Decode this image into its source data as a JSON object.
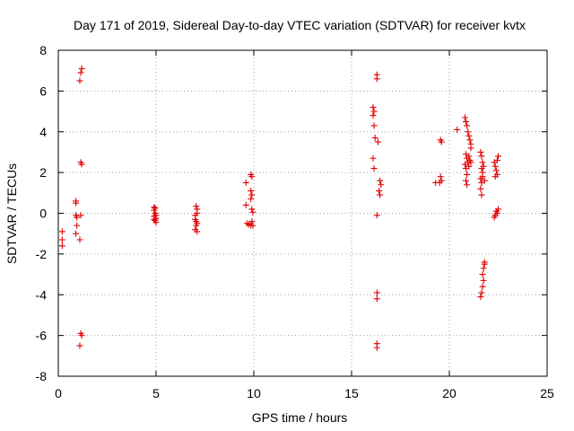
{
  "chart_data": {
    "type": "scatter",
    "title": "Day 171 of 2019, Sidereal Day-to-day VTEC variation (SDTVAR) for receiver kvtx",
    "xlabel": "GPS time / hours",
    "ylabel": "SDTVAR / TECUs",
    "xlim": [
      0,
      25
    ],
    "ylim": [
      -8,
      8
    ],
    "xticks": [
      "0",
      "5",
      "10",
      "15",
      "20",
      "25"
    ],
    "yticks": [
      "-8",
      "-6",
      "-4",
      "-2",
      "0",
      "2",
      "4",
      "6",
      "8"
    ],
    "grid": true,
    "marker": "plus",
    "color": "#e00000",
    "series": [
      {
        "name": "SDTVAR",
        "points": [
          [
            0.2,
            -0.9
          ],
          [
            0.2,
            -1.3
          ],
          [
            0.2,
            -1.6
          ],
          [
            0.9,
            0.6
          ],
          [
            0.9,
            0.5
          ],
          [
            0.9,
            -0.1
          ],
          [
            0.95,
            -0.2
          ],
          [
            0.95,
            -0.6
          ],
          [
            0.9,
            -1.0
          ],
          [
            1.1,
            -1.3
          ],
          [
            1.15,
            -0.1
          ],
          [
            1.2,
            7.1
          ],
          [
            1.15,
            6.9
          ],
          [
            1.1,
            6.5
          ],
          [
            1.15,
            2.5
          ],
          [
            1.2,
            2.4
          ],
          [
            1.15,
            -5.9
          ],
          [
            1.2,
            -6.0
          ],
          [
            1.1,
            -6.5
          ],
          [
            4.9,
            0.3
          ],
          [
            4.95,
            0.25
          ],
          [
            4.9,
            0.15
          ],
          [
            4.95,
            0.0
          ],
          [
            4.9,
            -0.15
          ],
          [
            5.0,
            -0.25
          ],
          [
            4.95,
            -0.35
          ],
          [
            5.0,
            -0.45
          ],
          [
            4.9,
            -0.3
          ],
          [
            5.0,
            -0.1
          ],
          [
            7.05,
            0.35
          ],
          [
            7.1,
            0.2
          ],
          [
            7.0,
            -0.3
          ],
          [
            7.05,
            -0.4
          ],
          [
            7.1,
            -0.5
          ],
          [
            7.05,
            -0.6
          ],
          [
            7.0,
            -0.8
          ],
          [
            7.1,
            -0.9
          ],
          [
            7.0,
            -0.1
          ],
          [
            7.1,
            0.0
          ],
          [
            9.6,
            1.5
          ],
          [
            9.6,
            0.4
          ],
          [
            9.65,
            -0.5
          ],
          [
            9.75,
            -0.55
          ],
          [
            9.85,
            -0.6
          ],
          [
            9.95,
            -0.6
          ],
          [
            9.85,
            1.9
          ],
          [
            9.9,
            1.8
          ],
          [
            9.85,
            1.1
          ],
          [
            9.9,
            0.9
          ],
          [
            9.85,
            0.7
          ],
          [
            9.9,
            0.2
          ],
          [
            9.95,
            0.05
          ],
          [
            9.9,
            -0.4
          ],
          [
            16.1,
            5.2
          ],
          [
            16.15,
            5.0
          ],
          [
            16.1,
            4.8
          ],
          [
            16.15,
            4.3
          ],
          [
            16.2,
            3.7
          ],
          [
            16.1,
            2.7
          ],
          [
            16.15,
            2.2
          ],
          [
            16.3,
            6.8
          ],
          [
            16.3,
            6.6
          ],
          [
            16.35,
            3.5
          ],
          [
            16.3,
            -0.1
          ],
          [
            16.3,
            -3.9
          ],
          [
            16.3,
            -4.2
          ],
          [
            16.3,
            -6.4
          ],
          [
            16.3,
            -6.6
          ],
          [
            16.45,
            1.6
          ],
          [
            16.5,
            1.4
          ],
          [
            16.4,
            1.1
          ],
          [
            16.45,
            0.9
          ],
          [
            19.3,
            1.5
          ],
          [
            19.55,
            3.6
          ],
          [
            19.6,
            3.5
          ],
          [
            19.55,
            1.8
          ],
          [
            19.6,
            1.6
          ],
          [
            19.5,
            1.5
          ],
          [
            20.4,
            4.1
          ],
          [
            20.8,
            4.7
          ],
          [
            20.85,
            4.5
          ],
          [
            20.9,
            4.3
          ],
          [
            20.95,
            4.0
          ],
          [
            21.0,
            3.8
          ],
          [
            21.05,
            3.6
          ],
          [
            21.1,
            3.4
          ],
          [
            21.1,
            3.2
          ],
          [
            20.85,
            2.9
          ],
          [
            20.9,
            2.7
          ],
          [
            20.95,
            2.5
          ],
          [
            21.0,
            2.3
          ],
          [
            21.05,
            2.6
          ],
          [
            20.8,
            2.4
          ],
          [
            20.85,
            2.2
          ],
          [
            20.9,
            1.9
          ],
          [
            20.85,
            1.6
          ],
          [
            20.9,
            1.4
          ],
          [
            21.0,
            2.8
          ],
          [
            21.1,
            2.5
          ],
          [
            21.6,
            3.0
          ],
          [
            21.65,
            2.8
          ],
          [
            21.7,
            2.5
          ],
          [
            21.65,
            2.2
          ],
          [
            21.7,
            2.0
          ],
          [
            21.6,
            1.7
          ],
          [
            21.65,
            1.5
          ],
          [
            21.6,
            1.2
          ],
          [
            21.65,
            0.9
          ],
          [
            21.7,
            1.8
          ],
          [
            21.75,
            2.3
          ],
          [
            21.8,
            1.6
          ],
          [
            21.8,
            -2.4
          ],
          [
            21.75,
            -2.7
          ],
          [
            21.7,
            -3.0
          ],
          [
            21.75,
            -3.3
          ],
          [
            21.7,
            -3.6
          ],
          [
            21.65,
            -3.9
          ],
          [
            21.6,
            -4.1
          ],
          [
            21.8,
            -2.5
          ],
          [
            22.3,
            2.5
          ],
          [
            22.35,
            2.3
          ],
          [
            22.4,
            2.1
          ],
          [
            22.45,
            1.9
          ],
          [
            22.5,
            2.8
          ],
          [
            22.45,
            2.6
          ],
          [
            22.35,
            1.8
          ],
          [
            22.4,
            0.1
          ],
          [
            22.45,
            0.0
          ],
          [
            22.35,
            -0.1
          ],
          [
            22.3,
            -0.2
          ],
          [
            22.5,
            0.2
          ]
        ]
      }
    ]
  }
}
